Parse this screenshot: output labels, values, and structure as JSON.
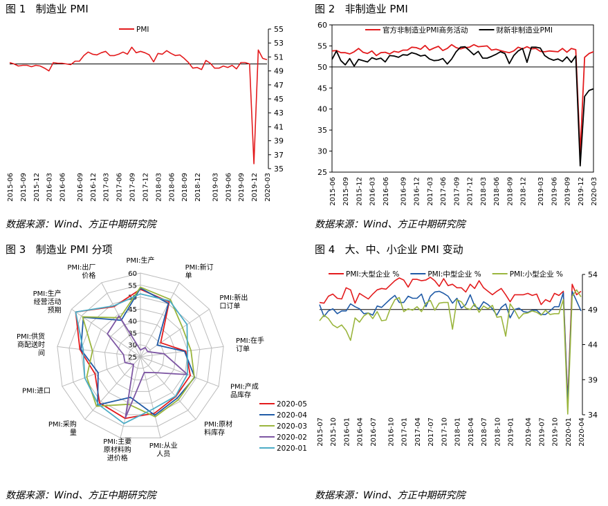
{
  "panels": [
    {
      "title": "图 1   制造业 PMI",
      "source": "数据来源：Wind、方正中期研究院"
    },
    {
      "title": "图 2   非制造业 PMI",
      "source": "数据来源：Wind、方正中期研究院"
    },
    {
      "title": "图 3   制造业 PMI 分项",
      "source": "数据来源：Wind、方正中期研究院"
    },
    {
      "title": "图 4   大、中、小企业 PMI 变动",
      "source": "数据来源：Wind、方正中期研究院"
    }
  ],
  "chart_data": [
    {
      "type": "line",
      "title": "制造业 PMI",
      "x_ticks": [
        "2015-06",
        "2015-09",
        "2015-12",
        "2016-03",
        "2016-06",
        "2016-09",
        "2016-12",
        "2017-03",
        "2017-06",
        "2017-09",
        "2017-12",
        "2018-03",
        "2018-06",
        "2018-09",
        "2018-12",
        "2019-03",
        "2019-06",
        "2019-09",
        "2019-12",
        "2020-03"
      ],
      "ylim": [
        35,
        55
      ],
      "y_ticks": [
        35,
        37,
        39,
        41,
        43,
        45,
        47,
        49,
        51,
        53,
        55
      ],
      "legend_position": "top",
      "series": [
        {
          "name": "PMI",
          "color": "#e31a1c",
          "values": [
            50.2,
            50.0,
            49.7,
            49.8,
            49.8,
            49.6,
            49.8,
            49.7,
            49.4,
            49.0,
            50.2,
            50.1,
            50.1,
            50.0,
            49.9,
            50.4,
            50.4,
            51.2,
            51.7,
            51.4,
            51.3,
            51.6,
            51.8,
            51.2,
            51.2,
            51.4,
            51.7,
            51.4,
            52.4,
            51.6,
            51.8,
            51.6,
            51.3,
            50.3,
            51.5,
            51.4,
            51.9,
            51.5,
            51.2,
            51.3,
            50.8,
            50.2,
            49.4,
            49.5,
            49.2,
            50.5,
            50.1,
            49.4,
            49.4,
            49.7,
            49.5,
            49.8,
            49.3,
            50.2,
            50.2,
            50.0,
            35.7,
            52.0,
            50.8,
            50.6
          ]
        }
      ]
    },
    {
      "type": "line",
      "title": "非制造业 PMI",
      "x_ticks": [
        "2015-06",
        "2015-09",
        "2015-12",
        "2016-03",
        "2016-06",
        "2016-09",
        "2016-12",
        "2017-03",
        "2017-06",
        "2017-09",
        "2017-12",
        "2018-03",
        "2018-06",
        "2018-09",
        "2018-12",
        "2019-03",
        "2019-06",
        "2019-09",
        "2019-12",
        "2020-03"
      ],
      "ylim": [
        25,
        60
      ],
      "y_ticks": [
        25,
        30,
        35,
        40,
        45,
        50,
        55,
        60
      ],
      "reference_line": 50,
      "legend_position": "top",
      "series": [
        {
          "name": "官方非制造业PMI商务活动",
          "color": "#e31a1c",
          "values": [
            53.8,
            53.9,
            53.4,
            53.4,
            53.1,
            53.6,
            54.4,
            53.5,
            53.2,
            53.8,
            52.7,
            53.4,
            53.5,
            53.1,
            53.7,
            53.5,
            54.0,
            54.0,
            54.7,
            54.6,
            54.2,
            55.1,
            54.0,
            54.5,
            54.9,
            53.9,
            54.4,
            55.3,
            54.6,
            54.3,
            54.6,
            54.7,
            55.3,
            54.8,
            54.9,
            55.0,
            54.0,
            54.2,
            53.9,
            53.6,
            53.4,
            53.8,
            54.7,
            54.3,
            54.8,
            54.3,
            54.4,
            53.7,
            53.6,
            53.8,
            53.7,
            53.6,
            54.4,
            53.5,
            54.4,
            54.1,
            29.6,
            52.3,
            53.2,
            53.6
          ]
        },
        {
          "name": "财新非制造业PMI",
          "color": "#000000",
          "values": [
            51.8,
            53.8,
            51.5,
            50.5,
            52.0,
            50.2,
            51.8,
            51.5,
            51.2,
            52.2,
            51.8,
            52.1,
            51.2,
            52.7,
            52.6,
            52.3,
            52.9,
            52.8,
            53.4,
            53.1,
            52.6,
            52.8,
            51.9,
            51.5,
            51.6,
            52.0,
            50.7,
            51.9,
            53.6,
            54.7,
            54.8,
            53.9,
            52.9,
            53.7,
            52.1,
            52.1,
            52.5,
            53.0,
            53.6,
            53.2,
            50.8,
            52.7,
            53.8,
            54.4,
            51.1,
            54.7,
            54.7,
            54.5,
            52.7,
            52.0,
            51.6,
            51.9,
            51.3,
            52.4,
            51.1,
            52.6,
            26.5,
            43.0,
            44.4,
            44.8
          ]
        }
      ]
    },
    {
      "type": "radar",
      "title": "制造业 PMI 分项",
      "axes": [
        "PMI:生产",
        "PMI:新订单",
        "PMI:新出口订单",
        "PMI:在手订单",
        "PMI:产成品库存",
        "PMI:原材料库存",
        "PMI:从业人员",
        "PMI:主要原材料购进价格",
        "PMI:采购量",
        "PMI:进口",
        "PMI:供货商配送时间",
        "PMI:生产经营活动预期",
        "PMI:出厂价格"
      ],
      "axis_labels": [
        [
          "PMI:生产"
        ],
        [
          "PMI:新订",
          "单"
        ],
        [
          "PMI:新出",
          "口订单"
        ],
        [
          "PMI:在手",
          "订单"
        ],
        [
          "PMI:产成",
          "品库存"
        ],
        [
          "PMI:原材",
          "料库存"
        ],
        [
          "PMI:从业",
          "人员"
        ],
        [
          "PMI:主要",
          "原材料购",
          "进价格"
        ],
        [
          "PMI:采购",
          "量"
        ],
        [
          "PMI:进口"
        ],
        [
          "PMI:供货",
          "商配送时",
          "间"
        ],
        [
          "PMI:生产",
          "经营活动",
          "预期"
        ],
        [
          "PMI:出厂",
          "价格"
        ]
      ],
      "rlim": [
        25,
        60
      ],
      "r_ticks": [
        25,
        30,
        35,
        40,
        45,
        50,
        55,
        60
      ],
      "legend_position": "right",
      "series": [
        {
          "name": "2020-05",
          "color": "#e31a1c",
          "values": [
            53.2,
            50.9,
            35.3,
            44.1,
            47.3,
            47.3,
            49.4,
            51.6,
            50.8,
            45.3,
            50.5,
            57.9,
            48.7
          ]
        },
        {
          "name": "2020-04",
          "color": "#1f5aa6",
          "values": [
            53.7,
            50.2,
            33.5,
            43.6,
            49.3,
            48.2,
            50.2,
            42.5,
            52.0,
            43.9,
            50.1,
            54.0,
            42.2
          ]
        },
        {
          "name": "2020-03",
          "color": "#9ab53d",
          "values": [
            54.1,
            52.0,
            46.4,
            46.3,
            49.1,
            49.0,
            50.9,
            45.5,
            52.7,
            49.0,
            45.2,
            54.4,
            43.4
          ]
        },
        {
          "name": "2020-02",
          "color": "#7d56a3",
          "values": [
            27.8,
            29.3,
            28.7,
            35.0,
            46.1,
            33.9,
            31.8,
            51.4,
            29.3,
            31.9,
            32.1,
            41.8,
            44.3
          ]
        },
        {
          "name": "2020-01",
          "color": "#4bacc6",
          "values": [
            51.3,
            51.4,
            48.7,
            44.8,
            46.0,
            47.1,
            47.5,
            53.8,
            51.6,
            49.9,
            49.1,
            57.9,
            49.0
          ]
        }
      ]
    },
    {
      "type": "line",
      "title": "大、中、小企业 PMI 变动",
      "x_ticks": [
        "2015-07",
        "2015-10",
        "2016-01",
        "2016-04",
        "2016-07",
        "2016-10",
        "2017-01",
        "2017-04",
        "2017-07",
        "2017-10",
        "2018-01",
        "2018-04",
        "2018-07",
        "2018-10",
        "2019-01",
        "2019-04",
        "2019-07",
        "2019-10",
        "2020-01",
        "2020-04"
      ],
      "ylim": [
        34,
        54
      ],
      "y_ticks": [
        34,
        39,
        44,
        49,
        54
      ],
      "legend_position": "top",
      "series": [
        {
          "name": "PMI:大型企业 %",
          "color": "#e31a1c",
          "values": [
            50.0,
            49.9,
            50.9,
            51.2,
            50.6,
            50.5,
            52.1,
            51.8,
            49.9,
            51.3,
            50.9,
            50.5,
            51.2,
            51.8,
            52.0,
            51.9,
            52.5,
            53.1,
            53.5,
            53.2,
            52.2,
            53.3,
            53.3,
            53.1,
            53.2,
            53.6,
            53.1,
            52.3,
            53.4,
            52.4,
            52.6,
            52.1,
            52.1,
            51.5,
            52.6,
            52.0,
            53.1,
            52.1,
            51.6,
            51.1,
            51.6,
            52.0,
            51.1,
            50.1,
            51.1,
            51.1,
            51.1,
            51.3,
            51.0,
            51.2,
            49.7,
            50.4,
            50.1,
            51.3,
            51.0,
            51.6,
            36.0,
            52.6,
            51.1,
            51.6
          ]
        },
        {
          "name": "PMI:中型企业 %",
          "color": "#1f5aa6",
          "values": [
            49.7,
            48.0,
            48.8,
            49.1,
            48.4,
            48.8,
            48.8,
            49.8,
            49.4,
            49.1,
            48.4,
            48.5,
            48.2,
            49.5,
            49.3,
            49.9,
            50.5,
            51.0,
            50.0,
            50.0,
            50.9,
            50.6,
            50.6,
            51.2,
            49.4,
            50.9,
            51.5,
            51.6,
            51.3,
            50.9,
            49.9,
            50.6,
            49.2,
            49.7,
            51.1,
            49.5,
            49.1,
            50.1,
            49.7,
            49.1,
            48.2,
            49.3,
            49.8,
            47.8,
            49.0,
            49.2,
            48.7,
            48.6,
            48.9,
            48.9,
            48.3,
            48.3,
            48.8,
            49.4,
            49.4,
            51.4,
            35.5,
            51.6,
            50.2,
            48.8
          ]
        },
        {
          "name": "PMI:小型企业 %",
          "color": "#9ab53d",
          "values": [
            47.4,
            48.2,
            47.7,
            46.8,
            46.4,
            46.8,
            46.0,
            44.6,
            47.8,
            47.2,
            48.1,
            48.5,
            47.7,
            48.7,
            47.4,
            47.5,
            49.2,
            50.4,
            50.7,
            48.7,
            49.1,
            48.9,
            49.4,
            48.7,
            49.9,
            50.3,
            48.9,
            49.9,
            50.0,
            50.0,
            46.2,
            50.4,
            50.1,
            49.2,
            49.0,
            49.8,
            48.6,
            49.5,
            49.1,
            49.6,
            47.9,
            48.0,
            45.2,
            49.8,
            48.9,
            47.7,
            48.4,
            48.5,
            48.8,
            48.6,
            48.2,
            48.9,
            48.3,
            48.4,
            48.4,
            50.4,
            34.1,
            50.9,
            51.8,
            50.8
          ]
        }
      ]
    }
  ]
}
